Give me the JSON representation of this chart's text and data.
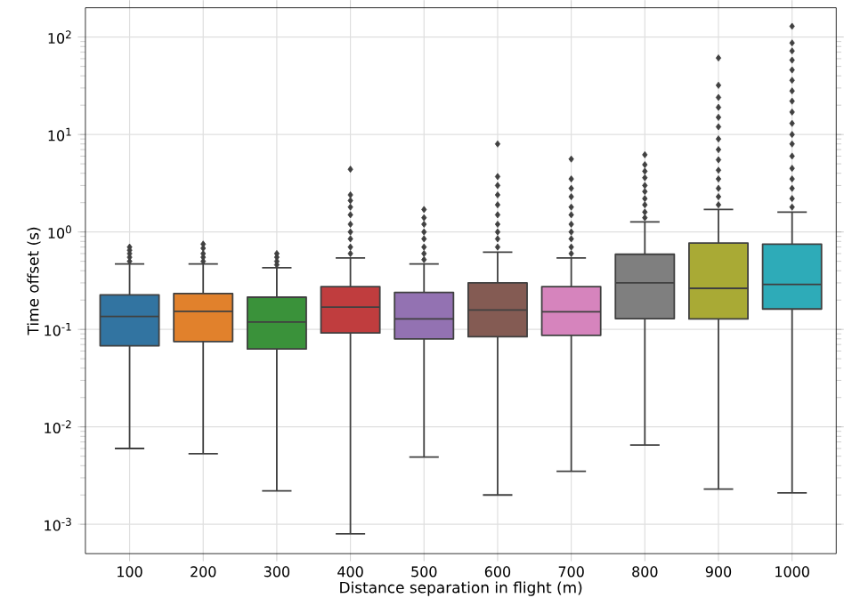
{
  "chart_data": {
    "type": "box",
    "xlabel": "Distance separation in flight (m)",
    "ylabel": "Time offset (s)",
    "categories": [
      "100",
      "200",
      "300",
      "400",
      "500",
      "600",
      "700",
      "800",
      "900",
      "1000"
    ],
    "log": "y",
    "grid": true,
    "marker": "diamond",
    "ylim": [
      0.0005,
      200
    ],
    "yticks": [
      {
        "value": 0.001,
        "label": "10$^{-3}$"
      },
      {
        "value": 0.01,
        "label": "10$^{-2}$"
      },
      {
        "value": 0.1,
        "label": "10$^{-1}$"
      },
      {
        "value": 1,
        "label": "10$^{0}$"
      },
      {
        "value": 10,
        "label": "10$^{1}$"
      },
      {
        "value": 100,
        "label": "10$^{2}$"
      }
    ],
    "colors": [
      "#3274a1",
      "#e1812c",
      "#3a923a",
      "#c03d3e",
      "#9372b2",
      "#845b53",
      "#d684bd",
      "#7f7f7f",
      "#a9aa35",
      "#2eabb8"
    ],
    "boxes": [
      {
        "low": 0.006,
        "q1": 0.068,
        "median": 0.136,
        "q3": 0.226,
        "high": 0.47,
        "outliers": [
          0.5,
          0.55,
          0.6,
          0.65,
          0.7
        ]
      },
      {
        "low": 0.0053,
        "q1": 0.075,
        "median": 0.153,
        "q3": 0.233,
        "high": 0.47,
        "outliers": [
          0.5,
          0.55,
          0.6,
          0.68,
          0.75
        ]
      },
      {
        "low": 0.0022,
        "q1": 0.063,
        "median": 0.119,
        "q3": 0.214,
        "high": 0.43,
        "outliers": [
          0.46,
          0.5,
          0.55,
          0.6
        ]
      },
      {
        "low": 0.0008,
        "q1": 0.092,
        "median": 0.169,
        "q3": 0.275,
        "high": 0.54,
        "outliers": [
          0.6,
          0.7,
          0.85,
          1.0,
          1.2,
          1.5,
          1.8,
          2.1,
          2.4,
          4.4
        ]
      },
      {
        "low": 0.0049,
        "q1": 0.08,
        "median": 0.128,
        "q3": 0.24,
        "high": 0.47,
        "outliers": [
          0.52,
          0.6,
          0.7,
          0.85,
          1.0,
          1.2,
          1.4,
          1.7
        ]
      },
      {
        "low": 0.002,
        "q1": 0.084,
        "median": 0.158,
        "q3": 0.3,
        "high": 0.62,
        "outliers": [
          0.7,
          0.85,
          1.0,
          1.2,
          1.5,
          1.9,
          2.4,
          3.0,
          3.7,
          8.0
        ]
      },
      {
        "low": 0.0035,
        "q1": 0.087,
        "median": 0.152,
        "q3": 0.275,
        "high": 0.54,
        "outliers": [
          0.6,
          0.7,
          0.85,
          1.0,
          1.2,
          1.5,
          1.8,
          2.3,
          2.8,
          3.5,
          5.6
        ]
      },
      {
        "low": 0.0065,
        "q1": 0.129,
        "median": 0.3,
        "q3": 0.59,
        "high": 1.27,
        "outliers": [
          1.4,
          1.6,
          1.9,
          2.2,
          2.6,
          3.0,
          3.6,
          4.2,
          4.9,
          6.2
        ]
      },
      {
        "low": 0.0023,
        "q1": 0.128,
        "median": 0.264,
        "q3": 0.77,
        "high": 1.7,
        "outliers": [
          1.9,
          2.3,
          2.8,
          3.5,
          4.3,
          5.5,
          7,
          9,
          12,
          15,
          19,
          24,
          32,
          61
        ]
      },
      {
        "low": 0.0021,
        "q1": 0.162,
        "median": 0.29,
        "q3": 0.75,
        "high": 1.6,
        "outliers": [
          1.8,
          2.2,
          2.8,
          3.5,
          4.5,
          6,
          8,
          10,
          13,
          17,
          22,
          28,
          36,
          46,
          58,
          72,
          87,
          129
        ]
      }
    ]
  }
}
